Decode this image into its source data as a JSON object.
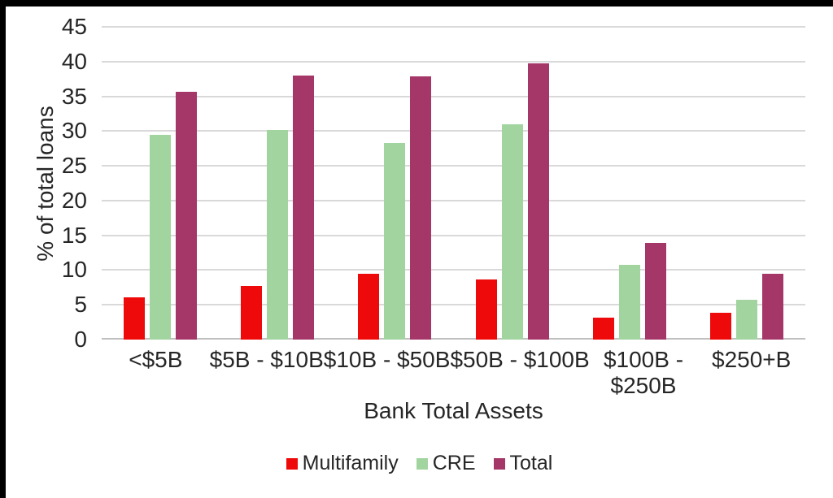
{
  "chart_data": {
    "type": "bar",
    "title": "",
    "xlabel": "Bank Total Assets",
    "ylabel": "% of total loans",
    "ylim": [
      0,
      45
    ],
    "yticks": [
      0,
      5,
      10,
      15,
      20,
      25,
      30,
      35,
      40,
      45
    ],
    "grid": true,
    "legend_position": "bottom",
    "categories": [
      "<$5B",
      "$5B - $10B",
      "$10B - $50B",
      "$50B - $100B",
      "$100B -\n$250B",
      "$250+B"
    ],
    "series": [
      {
        "name": "Multifamily",
        "color": "#ee0a0a",
        "values": [
          6.1,
          7.7,
          9.5,
          8.6,
          3.1,
          3.9
        ]
      },
      {
        "name": "CRE",
        "color": "#a2d4a0",
        "values": [
          29.5,
          30.2,
          28.3,
          31.0,
          10.8,
          5.7
        ]
      },
      {
        "name": "Total",
        "color": "#a43768",
        "values": [
          35.6,
          38.0,
          37.9,
          39.8,
          13.9,
          9.5
        ]
      }
    ]
  },
  "colors": {
    "background": "#ffffff",
    "frame": "#000000",
    "gridline": "#d9d9d9",
    "axis_line": "#bfbfbf",
    "text": "#262626"
  }
}
